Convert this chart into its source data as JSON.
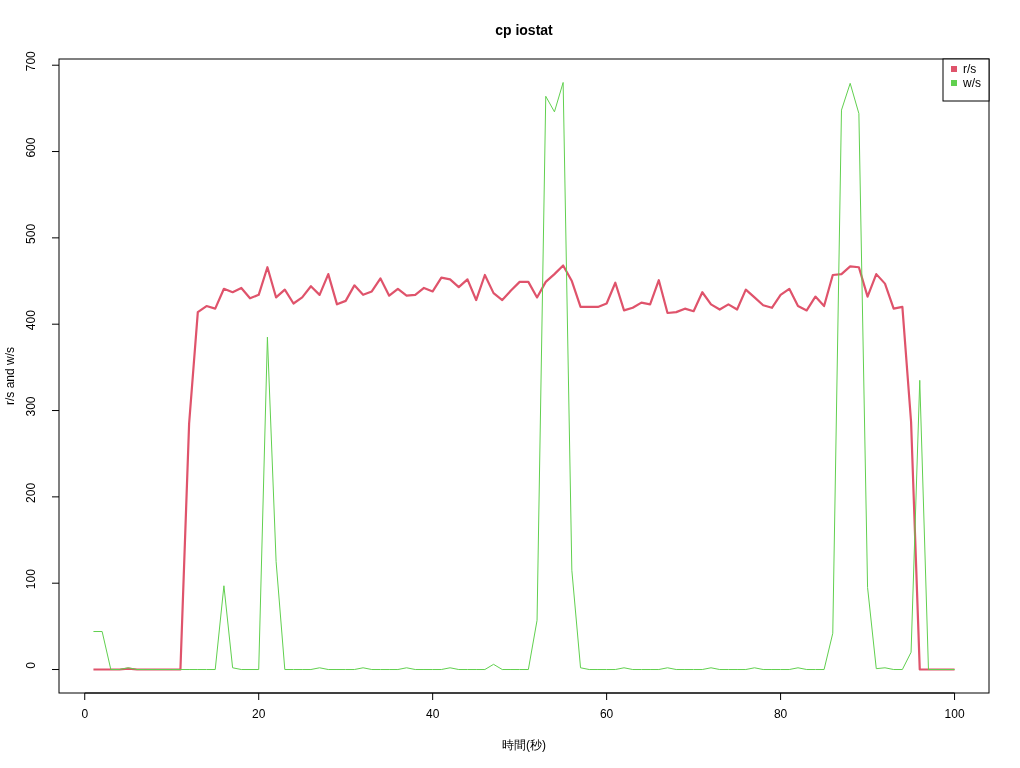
{
  "chart_data": {
    "type": "line",
    "title": "cp iostat",
    "xlabel": "時間(秒)",
    "ylabel": "r/s and w/s",
    "x": [
      1,
      2,
      3,
      4,
      5,
      6,
      7,
      8,
      9,
      10,
      11,
      12,
      13,
      14,
      15,
      16,
      17,
      18,
      19,
      20,
      21,
      22,
      23,
      24,
      25,
      26,
      27,
      28,
      29,
      30,
      31,
      32,
      33,
      34,
      35,
      36,
      37,
      38,
      39,
      40,
      41,
      42,
      43,
      44,
      45,
      46,
      47,
      48,
      49,
      50,
      51,
      52,
      53,
      54,
      55,
      56,
      57,
      58,
      59,
      60,
      61,
      62,
      63,
      64,
      65,
      66,
      67,
      68,
      69,
      70,
      71,
      72,
      73,
      74,
      75,
      76,
      77,
      78,
      79,
      80,
      81,
      82,
      83,
      84,
      85,
      86,
      87,
      88,
      89,
      90,
      91,
      92,
      93,
      94,
      95,
      96,
      97,
      98,
      99,
      100
    ],
    "series": [
      {
        "name": "r/s",
        "color": "#df536b",
        "values": [
          0,
          0,
          0,
          0,
          1,
          0,
          0,
          0,
          0,
          0,
          0,
          285,
          414,
          421,
          418,
          441,
          437,
          442,
          430,
          434,
          466,
          431,
          440,
          424,
          431,
          444,
          434,
          458,
          423,
          427,
          445,
          434,
          438,
          453,
          433,
          441,
          433,
          434,
          442,
          438,
          454,
          452,
          443,
          452,
          428,
          457,
          436,
          428,
          439,
          449,
          449,
          431,
          449,
          458,
          468,
          450,
          420,
          420,
          420,
          424,
          448,
          416,
          419,
          425,
          423,
          451,
          413,
          414,
          418,
          415,
          437,
          423,
          417,
          423,
          417,
          440,
          431,
          422,
          419,
          434,
          441,
          421,
          416,
          432,
          421,
          457,
          458,
          467,
          466,
          432,
          458,
          447,
          418,
          420,
          287,
          0,
          0,
          0,
          0,
          0
        ]
      },
      {
        "name": "w/s",
        "color": "#61d04f",
        "values": [
          44,
          44,
          0,
          0,
          2,
          0,
          0,
          0,
          0,
          0,
          0,
          0,
          0,
          0,
          0,
          97,
          2,
          0,
          0,
          0,
          385,
          125,
          0,
          0,
          0,
          0,
          2,
          0,
          0,
          0,
          0,
          2,
          0,
          0,
          0,
          0,
          2,
          0,
          0,
          0,
          0,
          2,
          0,
          0,
          0,
          0,
          6,
          0,
          0,
          0,
          0,
          57,
          664,
          646,
          680,
          115,
          2,
          0,
          0,
          0,
          0,
          2,
          0,
          0,
          0,
          0,
          2,
          0,
          0,
          0,
          0,
          2,
          0,
          0,
          0,
          0,
          2,
          0,
          0,
          0,
          0,
          2,
          0,
          0,
          0,
          42,
          648,
          679,
          644,
          95,
          1,
          2,
          0,
          0,
          20,
          335,
          0,
          0,
          0,
          0
        ]
      }
    ],
    "xlim": [
      -2.96,
      103.96
    ],
    "ylim": [
      -27.2,
      707.2
    ],
    "xticks": [
      0,
      20,
      40,
      60,
      80,
      100
    ],
    "yticks": [
      0,
      100,
      200,
      300,
      400,
      500,
      600,
      700
    ],
    "legend": "top right"
  }
}
